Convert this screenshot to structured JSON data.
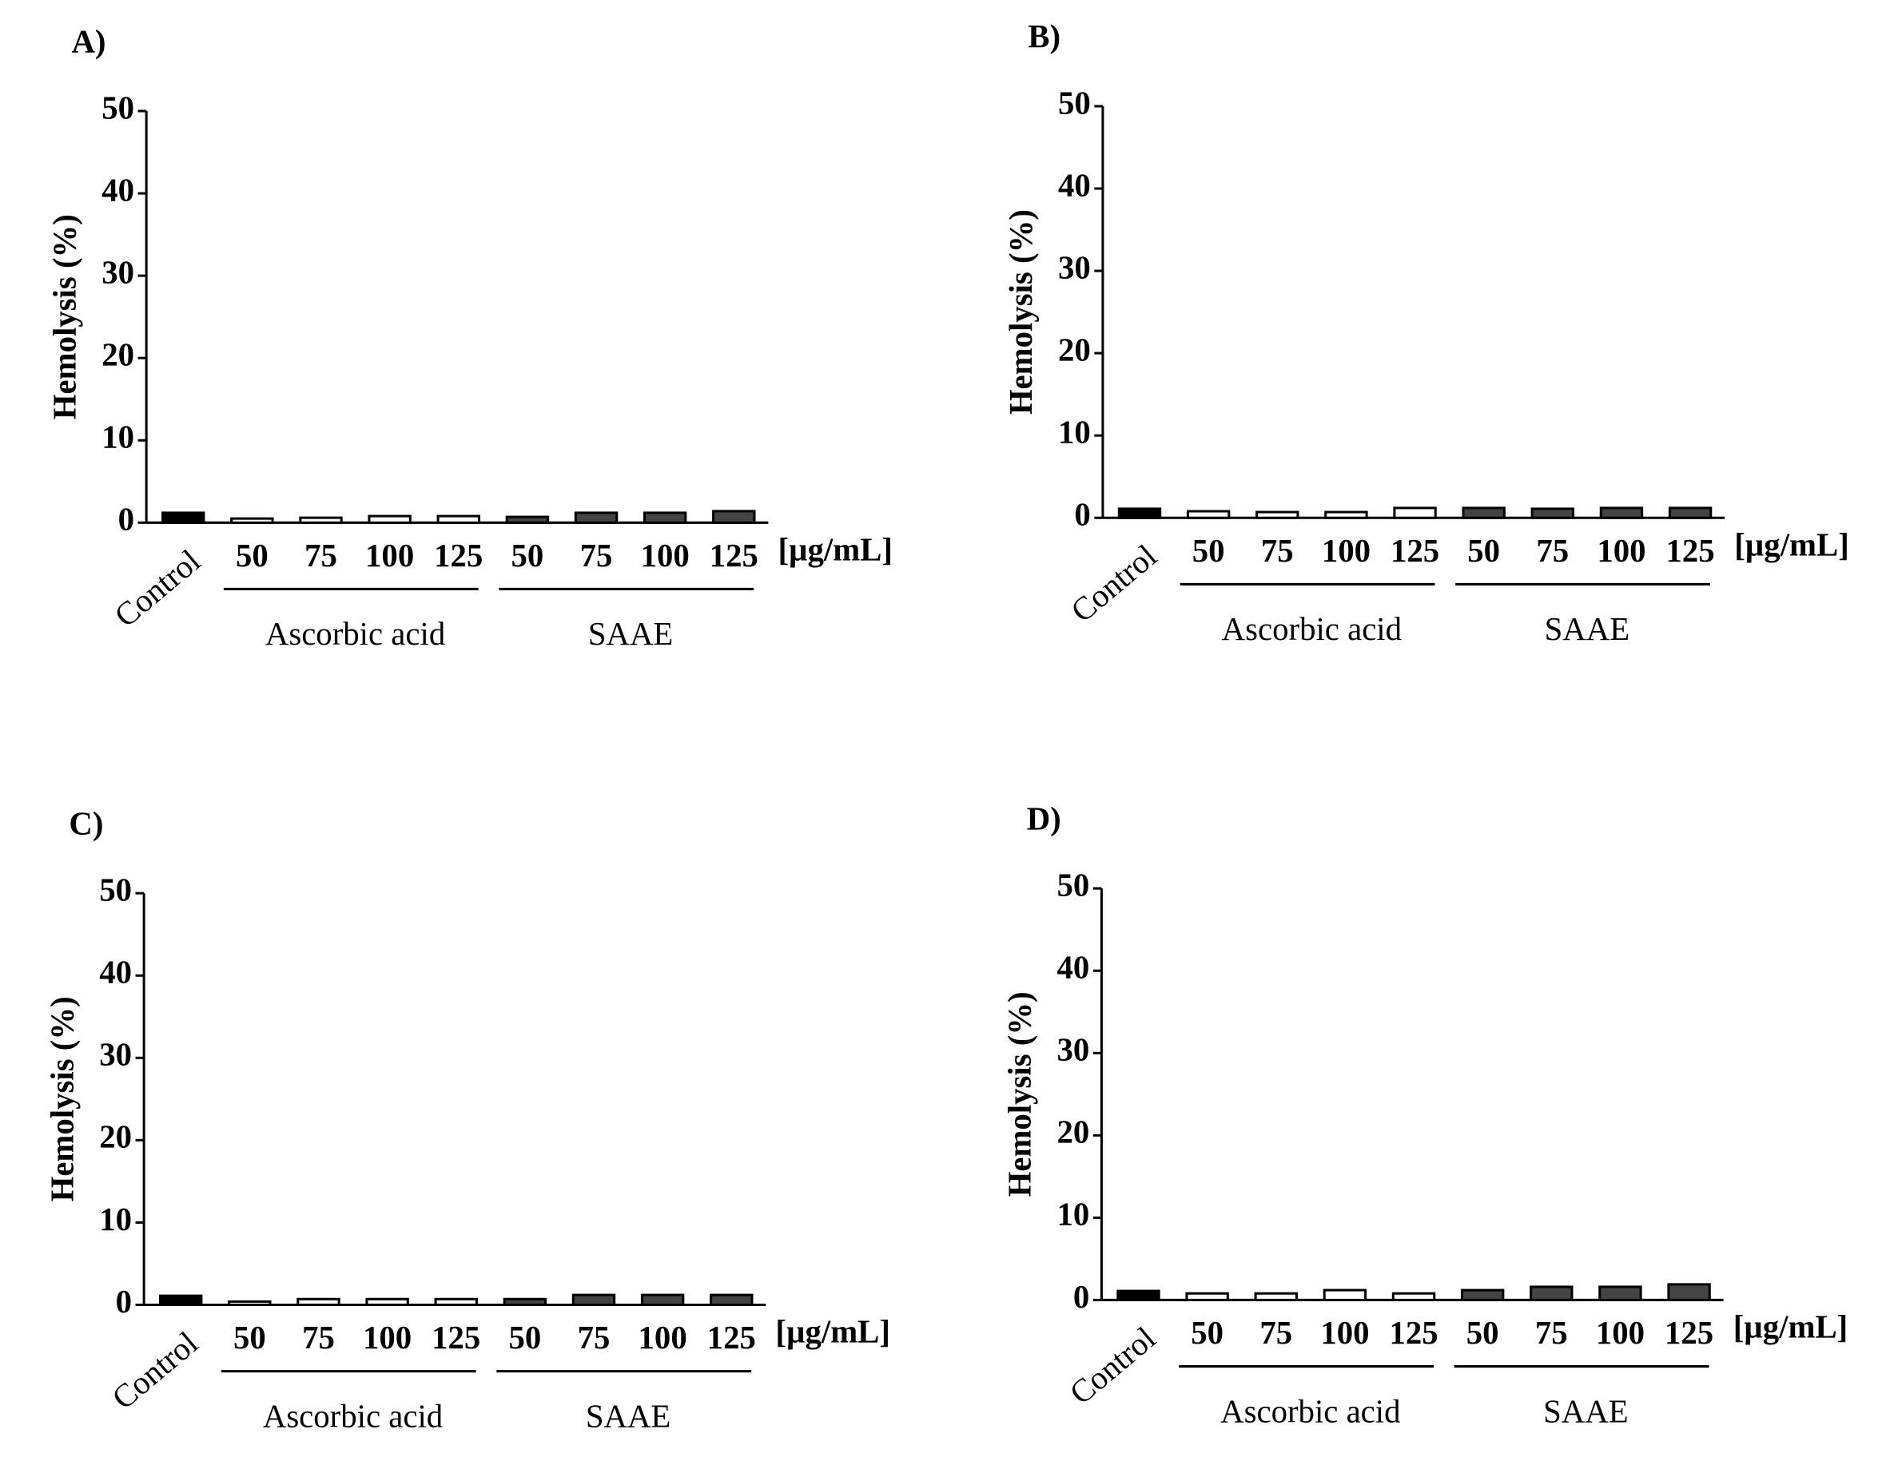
{
  "chart_data": [
    {
      "type": "bar",
      "panel": "A)",
      "y_label": "Hemolysis (%)",
      "unit_label": "[µg/mL]",
      "ylim": [
        0,
        50
      ],
      "yticks": [
        0,
        10,
        20,
        30,
        40,
        50
      ],
      "control": {
        "label": "Control",
        "color": "#000000",
        "value": 1.2
      },
      "groups": [
        {
          "name": "Ascorbic acid",
          "color": "#ffffff",
          "categories": [
            "50",
            "75",
            "100",
            "125"
          ],
          "values": [
            0.5,
            0.6,
            0.8,
            0.8
          ]
        },
        {
          "name": "SAAE",
          "color": "#444444",
          "categories": [
            "50",
            "75",
            "100",
            "125"
          ],
          "values": [
            0.7,
            1.2,
            1.2,
            1.4
          ]
        }
      ]
    },
    {
      "type": "bar",
      "panel": "B)",
      "y_label": "Hemolysis (%)",
      "unit_label": "[µg/mL]",
      "ylim": [
        0,
        50
      ],
      "yticks": [
        0,
        10,
        20,
        30,
        40,
        50
      ],
      "control": {
        "label": "Control",
        "color": "#000000",
        "value": 1.1
      },
      "groups": [
        {
          "name": "Ascorbic acid",
          "color": "#ffffff",
          "categories": [
            "50",
            "75",
            "100",
            "125"
          ],
          "values": [
            0.8,
            0.7,
            0.7,
            1.2
          ]
        },
        {
          "name": "SAAE",
          "color": "#444444",
          "categories": [
            "50",
            "75",
            "100",
            "125"
          ],
          "values": [
            1.2,
            1.1,
            1.2,
            1.2
          ]
        }
      ]
    },
    {
      "type": "bar",
      "panel": "C)",
      "y_label": "Hemolysis (%)",
      "unit_label": "[µg/mL]",
      "ylim": [
        0,
        50
      ],
      "yticks": [
        0,
        10,
        20,
        30,
        40,
        50
      ],
      "control": {
        "label": "Control",
        "color": "#000000",
        "value": 1.1
      },
      "groups": [
        {
          "name": "Ascorbic acid",
          "color": "#ffffff",
          "categories": [
            "50",
            "75",
            "100",
            "125"
          ],
          "values": [
            0.4,
            0.7,
            0.7,
            0.7
          ]
        },
        {
          "name": "SAAE",
          "color": "#444444",
          "categories": [
            "50",
            "75",
            "100",
            "125"
          ],
          "values": [
            0.7,
            1.2,
            1.2,
            1.2
          ]
        }
      ]
    },
    {
      "type": "bar",
      "panel": "D)",
      "y_label": "Hemolysis (%)",
      "unit_label": "[µg/mL]",
      "ylim": [
        0,
        50
      ],
      "yticks": [
        0,
        10,
        20,
        30,
        40,
        50
      ],
      "control": {
        "label": "Control",
        "color": "#000000",
        "value": 1.1
      },
      "groups": [
        {
          "name": "Ascorbic acid",
          "color": "#ffffff",
          "categories": [
            "50",
            "75",
            "100",
            "125"
          ],
          "values": [
            0.8,
            0.8,
            1.2,
            0.8
          ]
        },
        {
          "name": "SAAE",
          "color": "#444444",
          "categories": [
            "50",
            "75",
            "100",
            "125"
          ],
          "values": [
            1.2,
            1.6,
            1.6,
            1.9
          ]
        }
      ]
    }
  ]
}
